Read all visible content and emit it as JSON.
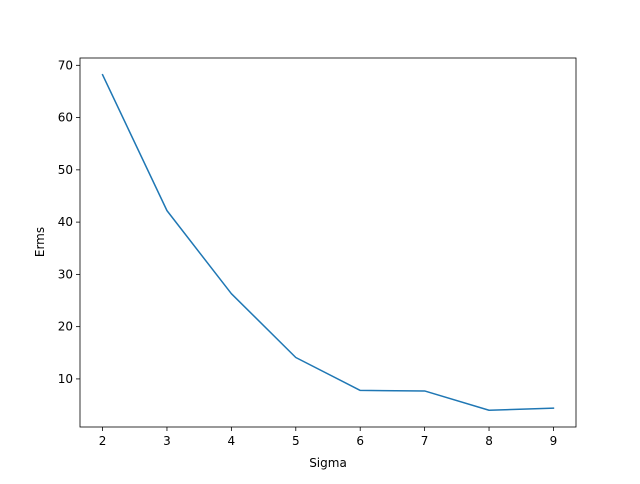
{
  "chart_data": {
    "type": "line",
    "title": "",
    "xlabel": "Sigma",
    "ylabel": "Erms",
    "x": [
      2,
      3,
      4,
      5,
      6,
      7,
      8,
      9
    ],
    "series": [
      {
        "values": [
          68.2,
          42.2,
          26.3,
          14.1,
          7.8,
          7.7,
          4.0,
          4.4
        ],
        "color": "#1f77b4"
      }
    ],
    "xlim": [
      1.65,
      9.35
    ],
    "ylim": [
      0.8,
      71.4
    ],
    "xticks": [
      2,
      3,
      4,
      5,
      6,
      7,
      8,
      9
    ],
    "yticks": [
      10,
      20,
      30,
      40,
      50,
      60,
      70
    ],
    "grid": false,
    "legend": "none"
  }
}
